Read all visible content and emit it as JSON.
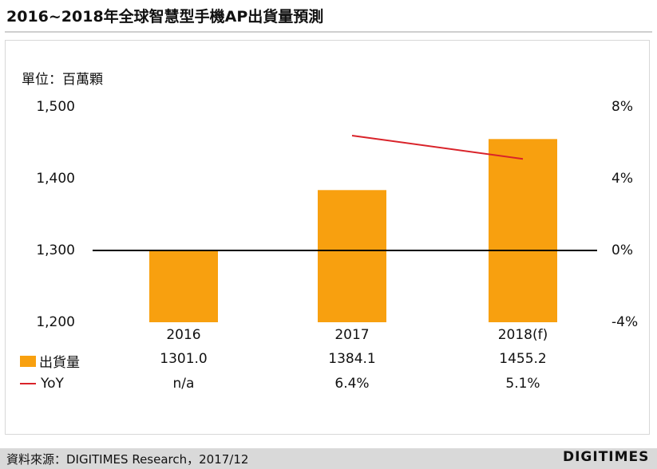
{
  "title": "2016~2018年全球智慧型手機AP出貨量預測",
  "unit_label": "單位：百萬顆",
  "footer": {
    "source": "資料來源：DIGITIMES Research，2017/12",
    "logo": "DIGITIMES"
  },
  "colors": {
    "bar": "#f8a00f",
    "line": "#d9232a",
    "baseline": "#000000"
  },
  "chart_data": {
    "type": "bar",
    "categories": [
      "2016",
      "2017",
      "2018(f)"
    ],
    "series": [
      {
        "name": "出貨量",
        "type": "bar",
        "axis": "left",
        "values": [
          1301.0,
          1384.1,
          1455.2
        ],
        "labels": [
          "1301.0",
          "1384.1",
          "1455.2"
        ]
      },
      {
        "name": "YoY",
        "type": "line",
        "axis": "right",
        "values": [
          null,
          6.4,
          5.1
        ],
        "labels": [
          "n/a",
          "6.4%",
          "5.1%"
        ]
      }
    ],
    "ylim": [
      1200,
      1500
    ],
    "yticks": [
      "1,500",
      "1,400",
      "1,300",
      "1,200"
    ],
    "y2lim": [
      -4,
      8
    ],
    "y2ticks": [
      "8%",
      "4%",
      "0%",
      "-4%"
    ],
    "baseline_value": 1300,
    "grid": false
  }
}
